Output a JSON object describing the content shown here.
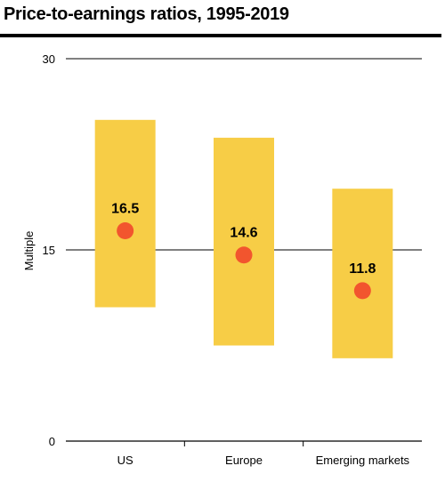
{
  "chart_data": {
    "type": "bar",
    "title": "Price-to-earnings ratios, 1995-2019",
    "ylabel": "Multiple",
    "ylim": [
      0,
      30
    ],
    "yticks": [
      0,
      15,
      30
    ],
    "categories": [
      "US",
      "Europe",
      "Emerging markets"
    ],
    "series": [
      {
        "name": "",
        "low": [
          10.5,
          7.5,
          6.5
        ],
        "high": [
          25.2,
          23.8,
          19.8
        ],
        "values": [
          16.5,
          14.6,
          11.8
        ]
      }
    ],
    "value_labels": [
      "16.5",
      "14.6",
      "11.8"
    ],
    "colors": {
      "range_bar": "#F7CD46",
      "median_dot": "#F2552E",
      "rule": "#000000"
    },
    "grid": true
  }
}
